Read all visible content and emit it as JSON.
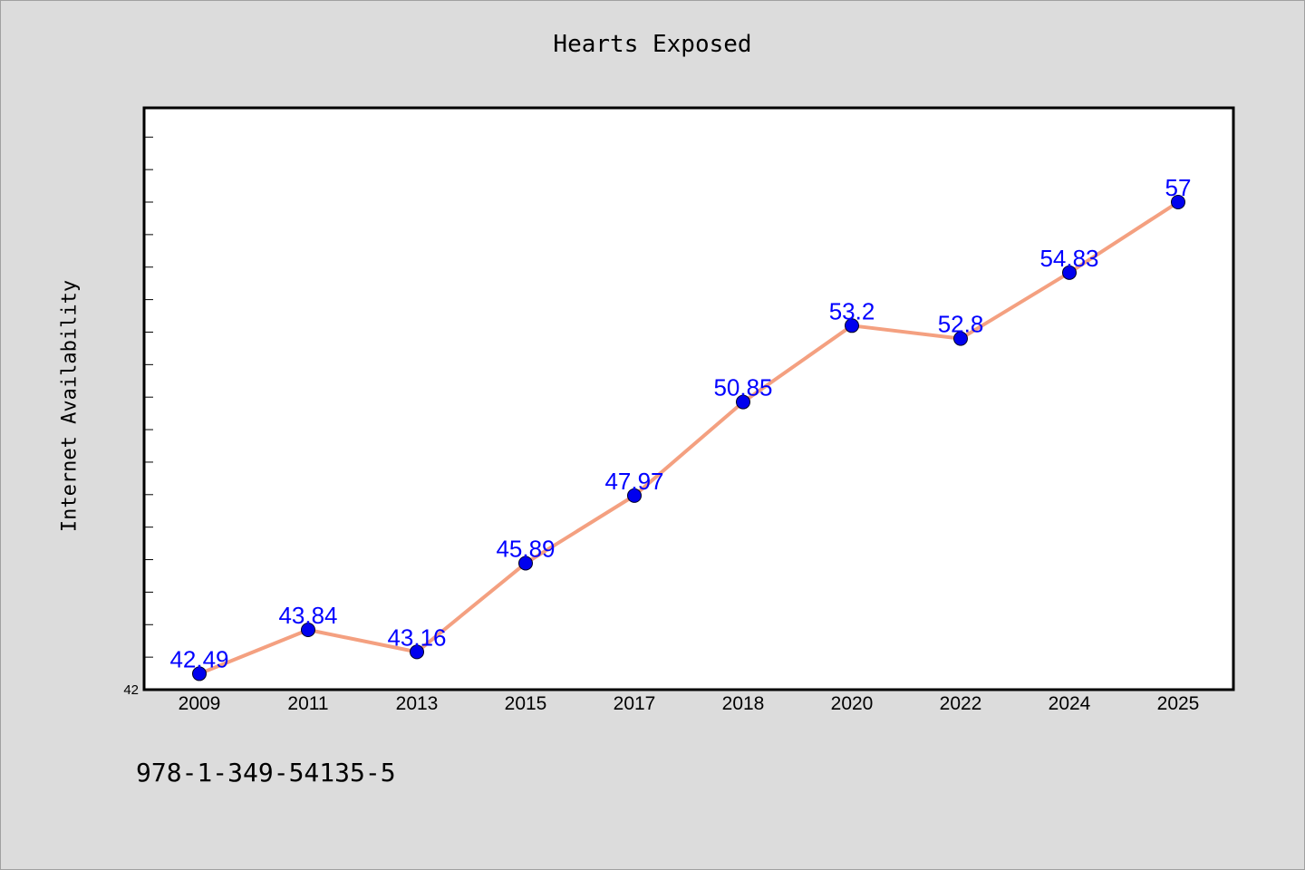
{
  "chart_data": {
    "type": "line",
    "title": "Hearts Exposed",
    "xlabel": "",
    "ylabel": "Internet Availability",
    "categories": [
      "2009",
      "2011",
      "2013",
      "2015",
      "2017",
      "2018",
      "2020",
      "2022",
      "2024",
      "2025"
    ],
    "values": [
      42.49,
      43.84,
      43.16,
      45.89,
      47.97,
      50.85,
      53.2,
      52.8,
      54.83,
      57
    ],
    "data_labels": [
      "42.49",
      "43.84",
      "43.16",
      "45.89",
      "47.97",
      "50.85",
      "53.2",
      "52.8",
      "54.83",
      "57"
    ],
    "ylim": [
      42,
      59.9
    ],
    "y_tick_labels": [
      "42"
    ],
    "grid": false,
    "colors": {
      "line": "#f4a080",
      "marker": "#0000ee",
      "label": "#0000ff"
    }
  },
  "footer": {
    "isbn": "978-1-349-54135-5"
  }
}
